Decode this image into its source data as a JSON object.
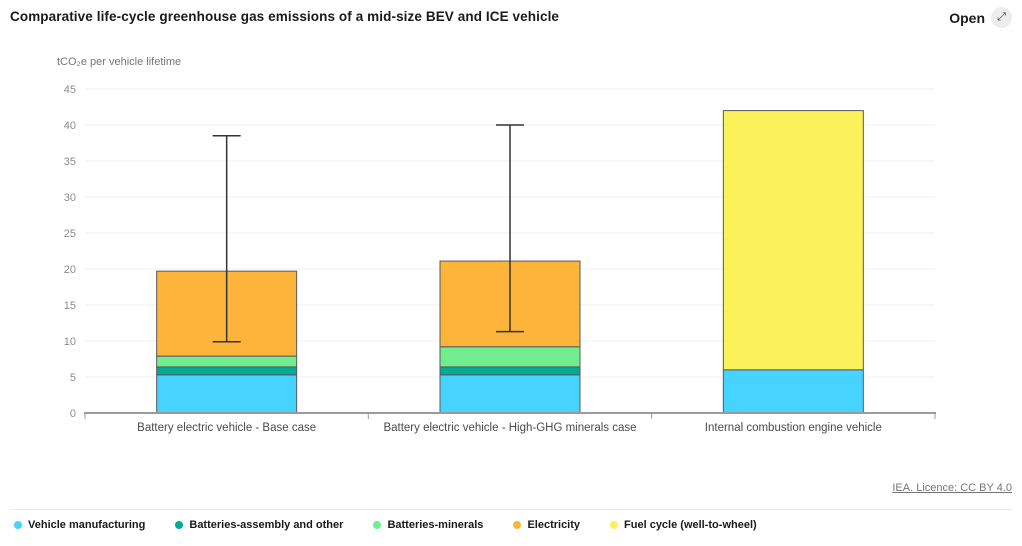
{
  "header": {
    "title": "Comparative life-cycle greenhouse gas emissions of a mid-size BEV and ICE vehicle",
    "open_label": "Open",
    "open_icon_glyph": "⤢"
  },
  "chart_data": {
    "type": "bar",
    "stacked": true,
    "title": "Comparative life-cycle greenhouse gas emissions of a mid-size BEV and ICE vehicle",
    "unit_label": "tCO₂e per vehicle lifetime",
    "xlabel": "",
    "ylabel": "tCO₂e per vehicle lifetime",
    "ylim": [
      0,
      45
    ],
    "yticks": [
      0,
      5,
      10,
      15,
      20,
      25,
      30,
      35,
      40,
      45
    ],
    "grid": true,
    "legend_position": "bottom",
    "categories": [
      "Battery electric vehicle - Base case",
      "Battery electric vehicle - High-GHG minerals case",
      "Internal combustion engine vehicle"
    ],
    "series": [
      {
        "name": "Vehicle manufacturing",
        "color": "#47d3ff",
        "values": [
          5.3,
          5.3,
          6.0
        ]
      },
      {
        "name": "Batteries-assembly and other",
        "color": "#00aa96",
        "values": [
          1.1,
          1.1,
          0
        ]
      },
      {
        "name": "Batteries-minerals",
        "color": "#70ee8f",
        "values": [
          1.5,
          2.8,
          0
        ]
      },
      {
        "name": "Electricity",
        "color": "#fcb43a",
        "values": [
          11.8,
          11.9,
          0
        ]
      },
      {
        "name": "Fuel cycle (well-to-wheel)",
        "color": "#fbf15a",
        "values": [
          0,
          0,
          36.0
        ]
      }
    ],
    "totals": [
      19.7,
      21.1,
      42.0
    ],
    "error_bars": [
      {
        "low": 9.9,
        "high": 38.5
      },
      {
        "low": 11.3,
        "high": 40.0
      },
      null
    ]
  },
  "footer": {
    "licence": "IEA. Licence: CC BY 4.0"
  }
}
